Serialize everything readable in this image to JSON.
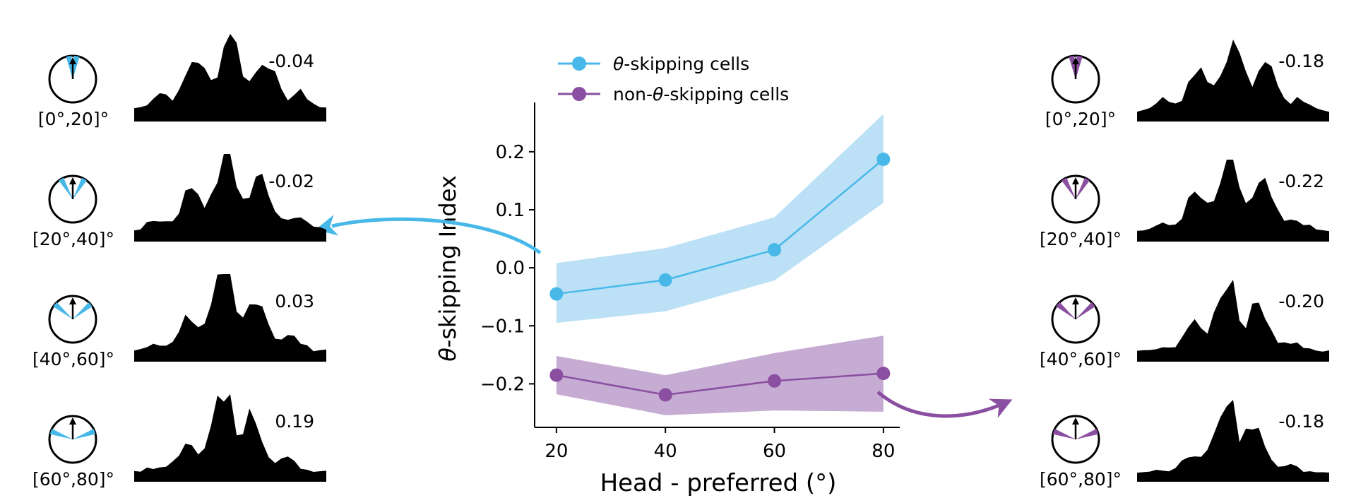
{
  "chart_data": {
    "type": "line",
    "xlabel": "Head - preferred (°)",
    "ylabel_prefix": "θ",
    "ylabel_rest": "-skipping Index",
    "x": [
      20,
      40,
      60,
      80
    ],
    "xlim": [
      16,
      83
    ],
    "ylim": [
      -0.275,
      0.285
    ],
    "xticks": [
      20,
      40,
      60,
      80
    ],
    "xtick_labels": [
      "20",
      "40",
      "60",
      "80"
    ],
    "yticks": [
      -0.2,
      -0.1,
      0.0,
      0.1,
      0.2
    ],
    "ytick_labels": [
      "−0.2",
      "−0.1",
      "0.0",
      "0.1",
      "0.2"
    ],
    "series": [
      {
        "name": "θ-skipping cells",
        "legend_prefix": "θ",
        "legend_rest": "-skipping cells",
        "color": "#47b8e8",
        "band_color": "#b8dff5",
        "values": [
          -0.045,
          -0.021,
          0.031,
          0.187
        ],
        "lower": [
          -0.095,
          -0.075,
          -0.022,
          0.112
        ],
        "upper": [
          0.008,
          0.034,
          0.087,
          0.265
        ]
      },
      {
        "name": "non-θ-skipping cells",
        "legend_prefix": "non-",
        "legend_theta": "θ",
        "legend_rest": "-skipping cells",
        "color": "#8a4fa0",
        "band_color": "#c3a6d1",
        "values": [
          -0.185,
          -0.219,
          -0.195,
          -0.182
        ],
        "lower": [
          -0.218,
          -0.254,
          -0.246,
          -0.248
        ],
        "upper": [
          -0.152,
          -0.185,
          -0.147,
          -0.117
        ]
      }
    ],
    "insets": [
      {
        "group": "θ-skipping cells",
        "side": "left",
        "range_label": "[0°,20]°",
        "wedge_angle": 10,
        "index_label": "-0.04",
        "color": "#47b8e8"
      },
      {
        "group": "θ-skipping cells",
        "side": "left",
        "range_label": "[20°,40]°",
        "wedge_angle": 30,
        "index_label": "-0.02",
        "color": "#47b8e8"
      },
      {
        "group": "θ-skipping cells",
        "side": "left",
        "range_label": "[40°,60]°",
        "wedge_angle": 50,
        "index_label": "0.03",
        "color": "#47b8e8"
      },
      {
        "group": "θ-skipping cells",
        "side": "left",
        "range_label": "[60°,80]°",
        "wedge_angle": 70,
        "index_label": "0.19",
        "color": "#47b8e8"
      },
      {
        "group": "non-θ-skipping cells",
        "side": "right",
        "range_label": "[0°,20]°",
        "wedge_angle": 10,
        "index_label": "-0.18",
        "color": "#8a4fa0"
      },
      {
        "group": "non-θ-skipping cells",
        "side": "right",
        "range_label": "[20°,40]°",
        "wedge_angle": 30,
        "index_label": "-0.22",
        "color": "#8a4fa0"
      },
      {
        "group": "non-θ-skipping cells",
        "side": "right",
        "range_label": "[40°,60]°",
        "wedge_angle": 50,
        "index_label": "-0.20",
        "color": "#8a4fa0"
      },
      {
        "group": "non-θ-skipping cells",
        "side": "right",
        "range_label": "[60°,80]°",
        "wedge_angle": 70,
        "index_label": "-0.18",
        "color": "#8a4fa0"
      }
    ]
  }
}
